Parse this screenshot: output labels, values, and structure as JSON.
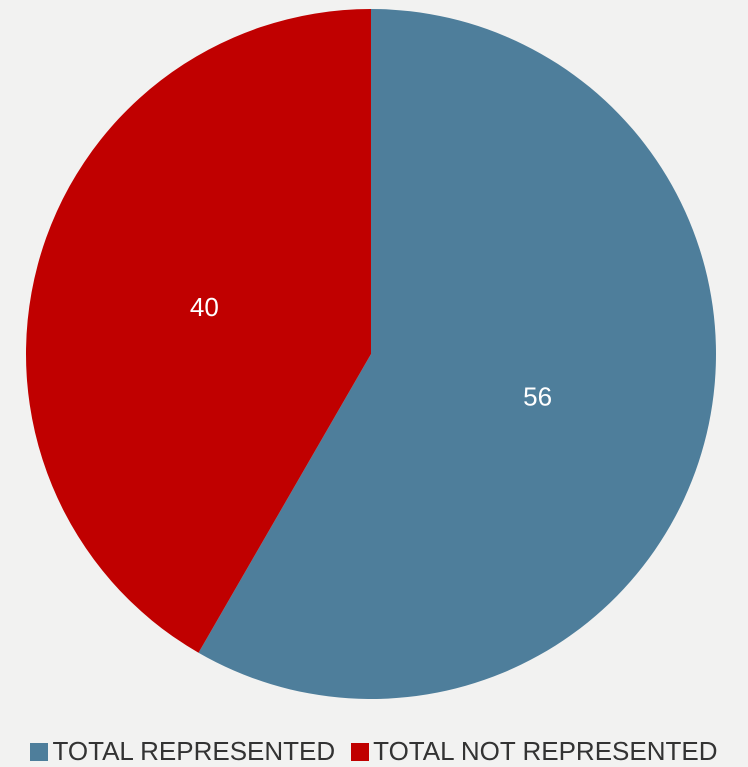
{
  "chart_data": {
    "type": "pie",
    "title": "",
    "slices": [
      {
        "name": "TOTAL REPRESENTED",
        "value": 56,
        "label": "56",
        "color": "#4e7e9b"
      },
      {
        "name": "TOTAL NOT REPRESENTED",
        "value": 40,
        "label": "40",
        "color": "#c00000"
      }
    ],
    "start": "12 o'clock",
    "direction": "clockwise",
    "legend": {
      "position": "bottom"
    },
    "background": "#f2f2f1"
  }
}
